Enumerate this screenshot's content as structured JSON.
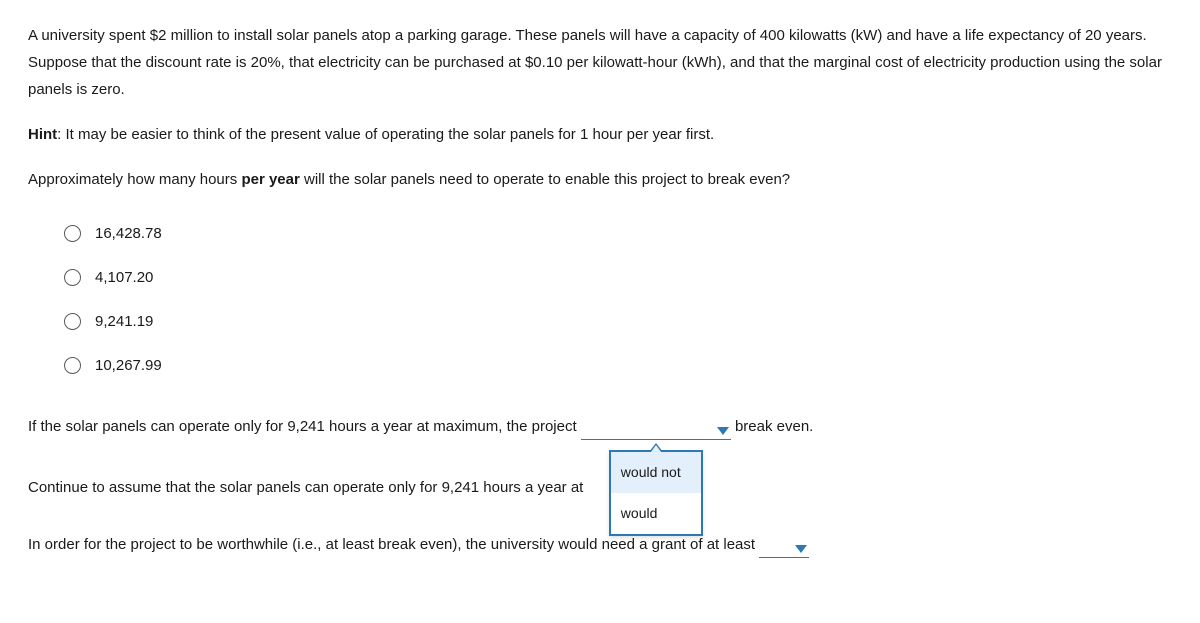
{
  "intro": "A university spent $2 million to install solar panels atop a parking garage. These panels will have a capacity of 400 kilowatts (kW) and have a life expectancy of 20 years. Suppose that the discount rate is 20%, that electricity can be purchased at $0.10 per kilowatt-hour (kWh), and that the marginal cost of electricity production using the solar panels is zero.",
  "hint_label": "Hint",
  "hint_text": ": It may be easier to think of the present value of operating the solar panels for 1 hour per year first.",
  "q1_pre": "Approximately how many hours ",
  "q1_bold": "per year",
  "q1_post": " will the solar panels need to operate to enable this project to break even?",
  "radio_options": [
    "16,428.78",
    "4,107.20",
    "9,241.19",
    "10,267.99"
  ],
  "q2_pre": "If the solar panels can operate only for 9,241 hours a year at maximum, the project ",
  "q2_post": " break even.",
  "q3": "Continue to assume that the solar panels can operate only for 9,241 hours a year at ",
  "q4": "In order for the project to be worthwhile (i.e., at least break even), the university would need a grant of at least ",
  "dropdown": {
    "items": [
      "would not",
      "would"
    ],
    "highlight_index": 0
  },
  "style": {
    "accent": "#2c79b5",
    "dd_highlight_bg": "#e3effa"
  }
}
